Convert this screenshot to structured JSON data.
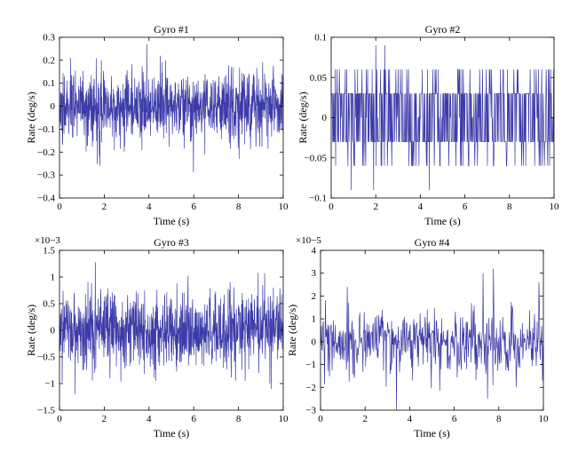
{
  "chart_data": [
    {
      "type": "line",
      "title": "Gyro #1",
      "xlabel": "Time (s)",
      "ylabel": "Rate (deg/s)",
      "xlim": [
        0,
        10
      ],
      "ylim": [
        -0.4,
        0.3
      ],
      "xticks": [
        0,
        2,
        4,
        6,
        8,
        10
      ],
      "xtick_labels": [
        "0",
        "2",
        "4",
        "6",
        "8",
        "10"
      ],
      "yticks": [
        -0.4,
        -0.3,
        -0.2,
        -0.1,
        0,
        0.1,
        0.2,
        0.3
      ],
      "ytick_labels": [
        "−0.4",
        "−0.3",
        "−0.2",
        "−0.1",
        "0",
        "0.1",
        "0.2",
        "0.3"
      ],
      "exponent_label": "",
      "series": [
        {
          "color": "#3c3ca8",
          "x_range": [
            0,
            10
          ],
          "samples": 1000,
          "noise": "gaussian",
          "mean": 0,
          "std": 0.075,
          "peaks": [
            {
              "x": 1.8,
              "y": -0.26
            },
            {
              "x": 3.9,
              "y": 0.27
            },
            {
              "x": 4.5,
              "y": 0.22
            },
            {
              "x": 6.5,
              "y": -0.21
            },
            {
              "x": 0.5,
              "y": 0.21
            }
          ]
        }
      ]
    },
    {
      "type": "line",
      "title": "Gyro #2",
      "xlabel": "Time (s)",
      "ylabel": "Rate (deg/s)",
      "xlim": [
        0,
        10
      ],
      "ylim": [
        -0.1,
        0.1
      ],
      "xticks": [
        0,
        2,
        4,
        6,
        8,
        10
      ],
      "xtick_labels": [
        "0",
        "2",
        "4",
        "6",
        "8",
        "10"
      ],
      "yticks": [
        -0.1,
        -0.05,
        0,
        0.05,
        0.1
      ],
      "ytick_labels": [
        "−0.1",
        "−0.05",
        "0",
        "0.05",
        "0.1"
      ],
      "exponent_label": "",
      "series": [
        {
          "color": "#3c3ca8",
          "x_range": [
            0,
            10
          ],
          "samples": 600,
          "noise": "quantized",
          "levels": [
            -0.09,
            -0.06,
            -0.03,
            0,
            0.03,
            0.06,
            0.09
          ],
          "peaks": [
            {
              "x": 0.9,
              "y": -0.09
            },
            {
              "x": 1.9,
              "y": -0.09
            },
            {
              "x": 2.0,
              "y": 0.09
            },
            {
              "x": 2.4,
              "y": 0.09
            },
            {
              "x": 4.4,
              "y": -0.09
            }
          ]
        }
      ]
    },
    {
      "type": "line",
      "title": "Gyro #3",
      "xlabel": "Time (s)",
      "ylabel": "Rate (deg/s)",
      "xlim": [
        0,
        10
      ],
      "ylim": [
        -1.5,
        1.5
      ],
      "xticks": [
        0,
        2,
        4,
        6,
        8,
        10
      ],
      "xtick_labels": [
        "0",
        "2",
        "4",
        "6",
        "8",
        "10"
      ],
      "yticks": [
        -1.5,
        -1,
        -0.5,
        0,
        0.5,
        1,
        1.5
      ],
      "ytick_labels": [
        "−1.5",
        "−1",
        "−0.5",
        "0",
        "0.5",
        "1",
        "1.5"
      ],
      "exponent_label": "×10−3",
      "series": [
        {
          "color": "#3c3ca8",
          "x_range": [
            0,
            10
          ],
          "samples": 1000,
          "noise": "gaussian",
          "mean": 0,
          "std": 0.35,
          "peaks": [
            {
              "x": 1.6,
              "y": 1.28
            },
            {
              "x": 0.7,
              "y": -1.2
            },
            {
              "x": 4.3,
              "y": -0.95
            },
            {
              "x": 8.3,
              "y": -0.95
            },
            {
              "x": 9.4,
              "y": -1.0
            }
          ]
        }
      ]
    },
    {
      "type": "line",
      "title": "Gyro #4",
      "xlabel": "Time (s)",
      "ylabel": "Rate (deg/s)",
      "xlim": [
        0,
        10
      ],
      "ylim": [
        -3,
        4
      ],
      "xticks": [
        0,
        2,
        4,
        6,
        8,
        10
      ],
      "xtick_labels": [
        "0",
        "2",
        "4",
        "6",
        "8",
        "10"
      ],
      "yticks": [
        -3,
        -2,
        -1,
        0,
        1,
        2,
        3,
        4
      ],
      "ytick_labels": [
        "−3",
        "−2",
        "−1",
        "0",
        "1",
        "2",
        "3",
        "4"
      ],
      "exponent_label": "×10−5",
      "series": [
        {
          "color": "#3c3ca8",
          "x_range": [
            0,
            10
          ],
          "samples": 500,
          "noise": "gaussian",
          "mean": 0,
          "std": 0.75,
          "peaks": [
            {
              "x": 3.4,
              "y": -3.0
            },
            {
              "x": 7.3,
              "y": 3.0
            },
            {
              "x": 7.75,
              "y": 3.2
            },
            {
              "x": 9.8,
              "y": 2.6
            },
            {
              "x": 1.2,
              "y": 2.4
            },
            {
              "x": 7.5,
              "y": -2.5
            }
          ]
        }
      ]
    }
  ]
}
